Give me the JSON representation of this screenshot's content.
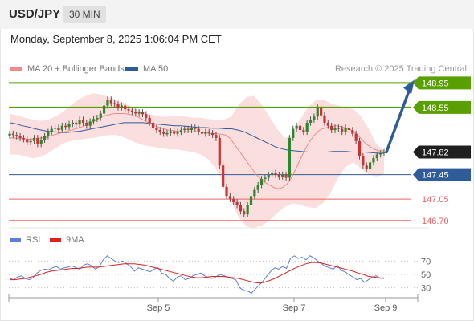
{
  "header": {
    "symbol": "USD/JPY",
    "timeframe": "30 MIN"
  },
  "datetime": "Monday, September 8, 2025 1:06:04 PM CET",
  "legend": [
    {
      "label": "MA 20 + Bollinger Bands",
      "color": "#f08a8a"
    },
    {
      "label": "MA 50",
      "color": "#2e5c9a"
    }
  ],
  "credit": "Research © 2025 Trading Central",
  "rsi_legend": [
    {
      "label": "RSI",
      "color": "#5b7fd6"
    },
    {
      "label": "9MA",
      "color": "#e02020"
    }
  ],
  "colors": {
    "resistance": "#58a000",
    "support": "#2e5c9a",
    "support_weak": "#f06060",
    "bull": "#2a8a2a",
    "bear": "#d03030",
    "band": "#fbdada",
    "arrow": "#2e5c9a",
    "rsi": "#5b7fd6",
    "rsi_ma": "#e02020"
  },
  "chart_data": [
    {
      "type": "candlestick",
      "title": "USD/JPY",
      "x_ticks": [
        "Sep 5",
        "Sep 7",
        "Sep 9"
      ],
      "ylim": [
        146.5,
        149.1
      ],
      "levels": [
        {
          "value": 148.95,
          "label": "148.95",
          "kind": "resistance"
        },
        {
          "value": 148.55,
          "label": "148.55",
          "kind": "resistance"
        },
        {
          "value": 147.82,
          "label": "147.82",
          "kind": "current"
        },
        {
          "value": 147.45,
          "label": "147.45",
          "kind": "support"
        },
        {
          "value": 147.05,
          "label": "147.05",
          "kind": "support_weak"
        },
        {
          "value": 146.7,
          "label": "146.70",
          "kind": "support_weak"
        }
      ],
      "closes": [
        148.12,
        148.1,
        148.08,
        148.05,
        148.03,
        147.98,
        148.0,
        148.05,
        147.95,
        148.02,
        148.08,
        148.15,
        148.2,
        148.22,
        148.18,
        148.25,
        148.23,
        148.28,
        148.3,
        148.27,
        148.35,
        148.3,
        148.25,
        148.32,
        148.36,
        148.38,
        148.45,
        148.58,
        148.68,
        148.62,
        148.6,
        148.55,
        148.58,
        148.52,
        148.5,
        148.48,
        148.45,
        148.47,
        148.44,
        148.38,
        148.3,
        148.22,
        148.18,
        148.15,
        148.12,
        148.13,
        148.16,
        148.12,
        148.15,
        148.18,
        148.2,
        148.18,
        148.22,
        148.2,
        148.15,
        148.12,
        148.15,
        148.13,
        148.1,
        148.05,
        147.6,
        147.25,
        147.1,
        147.05,
        147.0,
        146.95,
        146.85,
        146.8,
        146.95,
        147.1,
        147.2,
        147.28,
        147.38,
        147.4,
        147.45,
        147.48,
        147.45,
        147.42,
        147.45,
        147.4,
        148.05,
        148.2,
        148.25,
        148.18,
        148.15,
        148.3,
        148.35,
        148.4,
        148.55,
        148.42,
        148.3,
        148.25,
        148.18,
        148.22,
        148.2,
        148.15,
        148.22,
        148.18,
        148.12,
        148.0,
        147.75,
        147.6,
        147.55,
        147.65,
        147.72,
        147.78,
        147.8,
        147.82
      ],
      "ma20": [
        148.05,
        148.05,
        148.04,
        148.04,
        148.03,
        148.03,
        148.04,
        148.05,
        148.06,
        148.08,
        148.1,
        148.12,
        148.14,
        148.16,
        148.18,
        148.2,
        148.22,
        148.25,
        148.28,
        148.32,
        148.36,
        148.4,
        148.42,
        148.44,
        148.45,
        148.45,
        148.45,
        148.44,
        148.42,
        148.4,
        148.36,
        148.32,
        148.28,
        148.25,
        148.22,
        148.2,
        148.18,
        148.17,
        148.16,
        148.15,
        148.15,
        148.15,
        148.15,
        148.15,
        148.14,
        148.13,
        148.12,
        148.12,
        148.11,
        148.1,
        148.05,
        147.95,
        147.85,
        147.75,
        147.65,
        147.55,
        147.45,
        147.38,
        147.32,
        147.28,
        147.24,
        147.22,
        147.24,
        147.3,
        147.4,
        147.55,
        147.7,
        147.85,
        147.98,
        148.08,
        148.16,
        148.2,
        148.22,
        148.24,
        148.25,
        148.24,
        148.22,
        148.2,
        148.16,
        148.1,
        148.02,
        147.95,
        147.9,
        147.86,
        147.84,
        147.84
      ],
      "ma50": [
        148.3,
        148.28,
        148.25,
        148.23,
        148.2,
        148.18,
        148.16,
        148.15,
        148.14,
        148.14,
        148.15,
        148.16,
        148.18,
        148.2,
        148.22,
        148.24,
        148.26,
        148.28,
        148.3,
        148.3,
        148.3,
        148.3,
        148.29,
        148.28,
        148.27,
        148.26,
        148.25,
        148.25,
        148.24,
        148.23,
        148.22,
        148.22,
        148.21,
        148.21,
        148.2,
        148.2,
        148.18,
        148.15,
        148.1,
        148.05,
        148.0,
        147.95,
        147.9,
        147.87,
        147.85,
        147.84,
        147.83,
        147.82,
        147.82,
        147.82,
        147.82,
        147.83,
        147.83,
        147.83,
        147.82,
        147.82,
        147.82,
        147.81,
        147.8,
        147.8
      ],
      "bb_upper": [
        148.45,
        148.42,
        148.38,
        148.35,
        148.33,
        148.35,
        148.4,
        148.48,
        148.58,
        148.68,
        148.74,
        148.78,
        148.76,
        148.72,
        148.68,
        148.62,
        148.55,
        148.5,
        148.45,
        148.42,
        148.4,
        148.4,
        148.42,
        148.4,
        148.38,
        148.38,
        148.36,
        148.35,
        148.35,
        148.4,
        148.6,
        148.72,
        148.74,
        148.6,
        148.4,
        148.2,
        148.05,
        148.1,
        148.35,
        148.55,
        148.66,
        148.68,
        148.62,
        148.58,
        148.55,
        148.52,
        148.4,
        148.2,
        147.95,
        147.85
      ],
      "bb_lower": [
        147.78,
        147.78,
        147.75,
        147.72,
        147.74,
        147.8,
        147.88,
        147.96,
        148.0,
        148.02,
        148.04,
        148.05,
        148.08,
        148.1,
        148.1,
        148.06,
        148.0,
        147.95,
        147.92,
        147.9,
        147.88,
        147.86,
        147.86,
        147.84,
        147.82,
        147.78,
        147.7,
        147.55,
        147.3,
        147.0,
        146.75,
        146.6,
        146.58,
        146.62,
        146.7,
        146.82,
        146.92,
        146.98,
        146.96,
        146.92,
        146.9,
        146.98,
        147.15,
        147.4,
        147.58,
        147.65,
        147.55,
        147.45,
        147.42,
        147.45
      ],
      "projection": [
        147.82,
        148.95
      ]
    },
    {
      "type": "line",
      "title": "RSI",
      "ylim": [
        15,
        85
      ],
      "y_ticks": [
        "70",
        "50",
        "30"
      ],
      "series": [
        {
          "name": "RSI",
          "values": [
            44,
            42,
            46,
            48,
            44,
            42,
            45,
            52,
            56,
            58,
            57,
            60,
            62,
            58,
            60,
            61,
            63,
            60,
            58,
            64,
            66,
            63,
            58,
            62,
            72,
            78,
            74,
            70,
            68,
            70,
            66,
            62,
            55,
            60,
            58,
            56,
            54,
            58,
            60,
            52,
            50,
            44,
            40,
            46,
            48,
            42,
            44,
            48,
            50,
            52,
            48,
            45,
            44,
            47,
            50,
            48,
            46,
            44,
            42,
            30,
            26,
            25,
            22,
            28,
            34,
            40,
            48,
            55,
            60,
            58,
            62,
            59,
            74,
            78,
            74,
            76,
            72,
            78,
            75,
            70,
            66,
            62,
            60,
            58,
            64,
            56,
            54,
            50,
            46,
            42,
            44,
            38,
            42,
            46,
            48,
            44,
            45
          ]
        },
        {
          "name": "9MA",
          "values": [
            42,
            42,
            43,
            44,
            46,
            48,
            50,
            53,
            55,
            56,
            57,
            58,
            59,
            59,
            60,
            61,
            61,
            61,
            62,
            63,
            64,
            65,
            66,
            66,
            66,
            65,
            64,
            62,
            60,
            58,
            56,
            54,
            52,
            50,
            48,
            46,
            45,
            45,
            46,
            47,
            47,
            47,
            46,
            45,
            44,
            42,
            40,
            38,
            37,
            38,
            41,
            44,
            48,
            52,
            56,
            60,
            63,
            66,
            68,
            68,
            67,
            65,
            63,
            61,
            59,
            57,
            55,
            52,
            50,
            47,
            46,
            45,
            44
          ]
        }
      ]
    }
  ]
}
